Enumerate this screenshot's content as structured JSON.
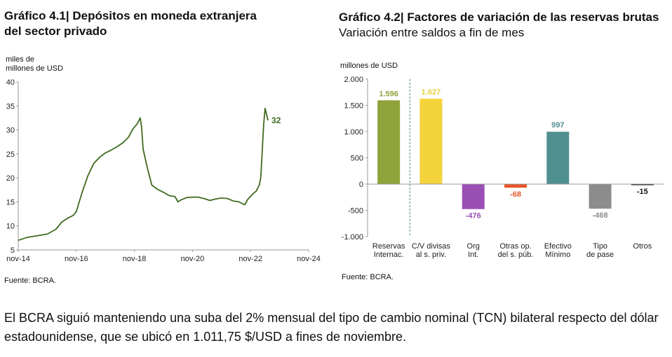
{
  "chart1": {
    "title_line1": "Gráfico 4.1| Depósitos en moneda extranjera",
    "title_line2": "del sector privado",
    "ylabel_line1": "miles de",
    "ylabel_line2": "millones de USD",
    "source": "Fuente: BCRA."
  },
  "chart2": {
    "title": "Gráfico 4.2| Factores de variación de las reservas brutas",
    "subtitle": "Variación entre saldos a fin de mes",
    "ylabel": "millones de USD",
    "source": "Fuente: BCRA."
  },
  "paragraph": "El BCRA siguió manteniendo una suba del 2% mensual del tipo de cambio nominal (TCN) bilateral respecto del dólar estadounidense, que se ubicó en 1.011,75 $/USD a fines de noviembre.",
  "chart_data": [
    {
      "type": "line",
      "x_ticks": [
        "nov-14",
        "nov-16",
        "nov-18",
        "nov-20",
        "nov-22",
        "nov-24"
      ],
      "ylim": [
        5,
        40
      ],
      "y_ticks": [
        "5",
        "10",
        "15",
        "20",
        "25",
        "30",
        "35",
        "40"
      ],
      "series_color": "#3f6a1f",
      "end_label": "32",
      "points": [
        [
          0.0,
          7.0
        ],
        [
          0.3,
          7.6
        ],
        [
          0.6,
          7.9
        ],
        [
          1.0,
          8.3
        ],
        [
          1.3,
          9.3
        ],
        [
          1.5,
          10.8
        ],
        [
          1.7,
          11.6
        ],
        [
          1.9,
          12.2
        ],
        [
          2.0,
          13.0
        ],
        [
          2.2,
          17.0
        ],
        [
          2.4,
          20.5
        ],
        [
          2.6,
          23.0
        ],
        [
          2.8,
          24.3
        ],
        [
          3.0,
          25.2
        ],
        [
          3.2,
          25.8
        ],
        [
          3.4,
          26.5
        ],
        [
          3.6,
          27.3
        ],
        [
          3.8,
          28.5
        ],
        [
          3.95,
          30.2
        ],
        [
          4.1,
          31.3
        ],
        [
          4.2,
          32.5
        ],
        [
          4.25,
          30.5
        ],
        [
          4.3,
          26.0
        ],
        [
          4.45,
          22.0
        ],
        [
          4.6,
          18.5
        ],
        [
          4.8,
          17.6
        ],
        [
          5.0,
          17.0
        ],
        [
          5.2,
          16.3
        ],
        [
          5.4,
          16.1
        ],
        [
          5.5,
          15.0
        ],
        [
          5.6,
          15.4
        ],
        [
          5.8,
          15.9
        ],
        [
          6.0,
          16.0
        ],
        [
          6.2,
          16.0
        ],
        [
          6.4,
          15.7
        ],
        [
          6.6,
          15.3
        ],
        [
          6.8,
          15.6
        ],
        [
          7.0,
          15.8
        ],
        [
          7.2,
          15.7
        ],
        [
          7.4,
          15.2
        ],
        [
          7.6,
          15.0
        ],
        [
          7.8,
          14.4
        ],
        [
          7.9,
          15.5
        ],
        [
          8.05,
          16.5
        ],
        [
          8.2,
          17.3
        ],
        [
          8.3,
          18.5
        ],
        [
          8.35,
          20.0
        ],
        [
          8.4,
          25.5
        ],
        [
          8.45,
          31.0
        ],
        [
          8.5,
          34.5
        ],
        [
          8.58,
          32.5
        ],
        [
          8.6,
          32.0
        ]
      ]
    },
    {
      "type": "bar",
      "categories": [
        [
          "Reservas",
          "Internac."
        ],
        [
          "C/V divisas",
          "al s. priv."
        ],
        [
          "Org",
          "Int."
        ],
        [
          "Otras op.",
          "del s. púb."
        ],
        [
          "Efectivo",
          "Mínimo"
        ],
        [
          "Tipo",
          "de pase"
        ],
        [
          "Otros",
          ""
        ]
      ],
      "values": [
        1596,
        1627,
        -476,
        -68,
        997,
        -468,
        -15
      ],
      "value_labels": [
        "1.596",
        "1.627",
        "-476",
        "-68",
        "997",
        "-468",
        "-15"
      ],
      "colors": [
        "#8fa33a",
        "#f5d33b",
        "#9a4fb5",
        "#e8552a",
        "#4f8f91",
        "#8c8c8c",
        "#111111"
      ],
      "label_colors": [
        "#8fa33a",
        "#e8cf3a",
        "#9a4fb5",
        "#e8552a",
        "#4f8f91",
        "#8c8c8c",
        "#111111"
      ],
      "ylim": [
        -1000,
        2000
      ],
      "y_ticks": [
        2000,
        1500,
        1000,
        500,
        0,
        -500,
        -1000
      ],
      "y_tick_labels": [
        "2.000",
        "1.500",
        "1.000",
        "500",
        "0",
        "-500",
        "-1.000"
      ],
      "separator_after_index": 0
    }
  ]
}
